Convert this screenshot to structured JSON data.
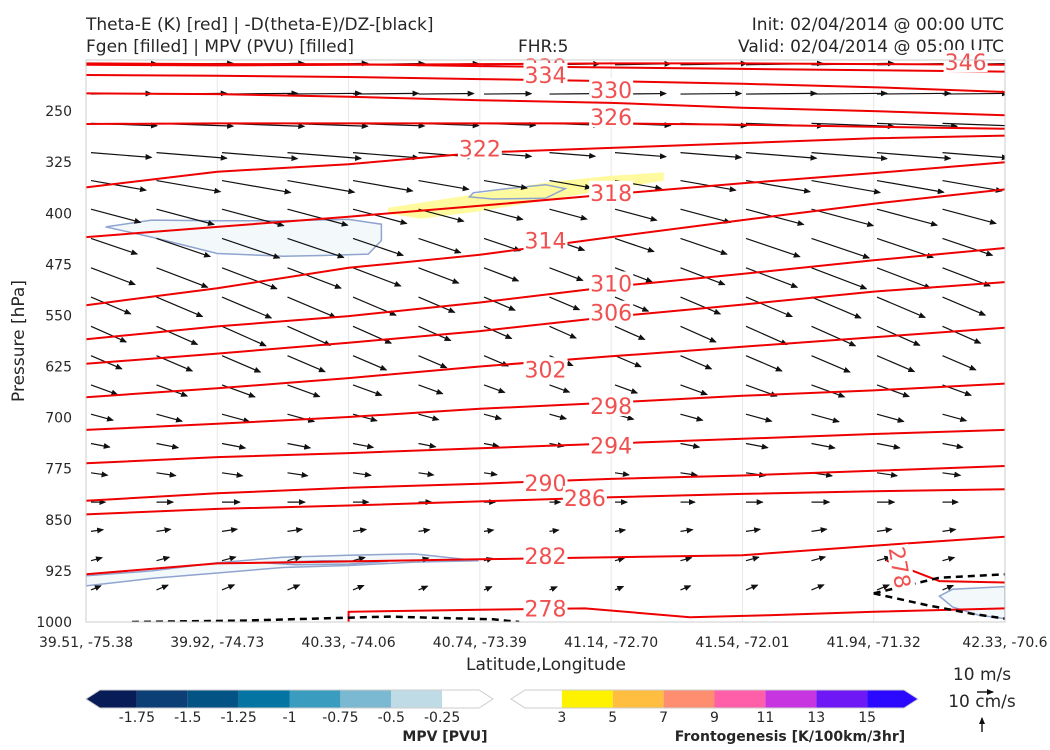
{
  "header": {
    "title_line1": "Theta-E (K) [red] | -D(theta-E)/DZ-[black]",
    "title_line2": "Fgen [filled] | MPV (PVU) [filled]",
    "fhr": "FHR:5",
    "init": "Init: 02/04/2014 @ 00:00 UTC",
    "valid": "Valid: 02/04/2014 @ 05:00 UTC"
  },
  "chart_data": {
    "type": "cross-section contour",
    "xlabel": "Latitude,Longitude",
    "ylabel": "Pressure [hPa]",
    "x_ticks": [
      "39.51, -75.38",
      "39.92, -74.73",
      "40.33, -74.06",
      "40.74, -73.39",
      "41.14, -72.70",
      "41.54, -72.01",
      "41.94, -71.32",
      "42.33, -70.6"
    ],
    "y_ticks": [
      250,
      325,
      400,
      475,
      550,
      625,
      700,
      775,
      850,
      925,
      1000
    ],
    "ylim": [
      1000,
      175
    ],
    "grid": true,
    "theta_e_contours": [
      {
        "label": "346",
        "points": [
          [
            0,
            182
          ],
          [
            1,
            183
          ],
          [
            2,
            182
          ],
          [
            3,
            181
          ],
          [
            4,
            180
          ],
          [
            5,
            180
          ],
          [
            6,
            181
          ],
          [
            7,
            182
          ]
        ],
        "label_at": [
          6.7,
          178
        ]
      },
      {
        "label": "338",
        "points": [
          [
            0,
            180
          ],
          [
            1,
            181
          ],
          [
            2,
            181
          ],
          [
            3,
            184
          ],
          [
            4,
            186
          ],
          [
            5,
            188
          ],
          [
            6,
            190
          ],
          [
            7,
            192
          ]
        ],
        "label_at": [
          3.5,
          185
        ]
      },
      {
        "label": "334",
        "points": [
          [
            0,
            197
          ],
          [
            1,
            198
          ],
          [
            2,
            200
          ],
          [
            3,
            203
          ],
          [
            4,
            206
          ],
          [
            5,
            210
          ],
          [
            6,
            215
          ],
          [
            7,
            222
          ]
        ],
        "label_at": [
          3.5,
          197
        ]
      },
      {
        "label": "330",
        "points": [
          [
            0,
            224
          ],
          [
            1,
            225
          ],
          [
            2,
            229
          ],
          [
            3,
            234
          ],
          [
            4,
            238
          ],
          [
            5,
            245
          ],
          [
            6,
            250
          ],
          [
            7,
            256
          ]
        ],
        "label_at": [
          4.0,
          219
        ]
      },
      {
        "label": "326",
        "points": [
          [
            0,
            269
          ],
          [
            1,
            268
          ],
          [
            2,
            268
          ],
          [
            3,
            268
          ],
          [
            4,
            268
          ],
          [
            5,
            270
          ],
          [
            6,
            273
          ],
          [
            7,
            276
          ]
        ],
        "label_at": [
          4.0,
          259
        ]
      },
      {
        "label": "322",
        "points": [
          [
            0,
            362
          ],
          [
            1,
            339
          ],
          [
            2,
            328
          ],
          [
            3,
            311
          ],
          [
            4,
            304
          ],
          [
            5,
            297
          ],
          [
            6,
            290
          ],
          [
            7,
            286
          ]
        ],
        "label_at": [
          3.0,
          305
        ]
      },
      {
        "label": "318",
        "points": [
          [
            0,
            435
          ],
          [
            1,
            420
          ],
          [
            2,
            405
          ],
          [
            3,
            389
          ],
          [
            4,
            372
          ],
          [
            5,
            356
          ],
          [
            6,
            341
          ],
          [
            7,
            325
          ]
        ],
        "label_at": [
          4.0,
          370
        ]
      },
      {
        "label": "314",
        "points": [
          [
            0,
            535
          ],
          [
            1,
            510
          ],
          [
            2,
            480
          ],
          [
            3,
            461
          ],
          [
            4,
            435
          ],
          [
            5,
            410
          ],
          [
            6,
            386
          ],
          [
            7,
            365
          ]
        ],
        "label_at": [
          3.5,
          440
        ]
      },
      {
        "label": "310",
        "points": [
          [
            0,
            585
          ],
          [
            1,
            566
          ],
          [
            2,
            551
          ],
          [
            3,
            531
          ],
          [
            4,
            508
          ],
          [
            5,
            489
          ],
          [
            6,
            469
          ],
          [
            7,
            451
          ]
        ],
        "label_at": [
          4.0,
          503
        ]
      },
      {
        "label": "306",
        "points": [
          [
            0,
            621
          ],
          [
            1,
            606
          ],
          [
            2,
            590
          ],
          [
            3,
            573
          ],
          [
            4,
            552
          ],
          [
            5,
            534
          ],
          [
            6,
            515
          ],
          [
            7,
            501
          ]
        ],
        "label_at": [
          4.0,
          546
        ]
      },
      {
        "label": "302",
        "points": [
          [
            0,
            670
          ],
          [
            1,
            657
          ],
          [
            2,
            642
          ],
          [
            3,
            625
          ],
          [
            4,
            610
          ],
          [
            5,
            596
          ],
          [
            6,
            582
          ],
          [
            7,
            568
          ]
        ],
        "label_at": [
          3.5,
          629
        ]
      },
      {
        "label": "298",
        "points": [
          [
            0,
            718
          ],
          [
            1,
            709
          ],
          [
            2,
            699
          ],
          [
            3,
            687
          ],
          [
            4,
            678
          ],
          [
            5,
            668
          ],
          [
            6,
            660
          ],
          [
            7,
            650
          ]
        ],
        "label_at": [
          4.0,
          683
        ]
      },
      {
        "label": "294",
        "points": [
          [
            0,
            767
          ],
          [
            1,
            758
          ],
          [
            2,
            752
          ],
          [
            3,
            745
          ],
          [
            4,
            738
          ],
          [
            5,
            731
          ],
          [
            6,
            724
          ],
          [
            7,
            718
          ]
        ],
        "label_at": [
          4.0,
          741
        ]
      },
      {
        "label": "290",
        "points": [
          [
            0,
            822
          ],
          [
            1,
            811
          ],
          [
            2,
            803
          ],
          [
            3,
            797
          ],
          [
            4,
            790
          ],
          [
            5,
            785
          ],
          [
            6,
            778
          ],
          [
            7,
            771
          ]
        ],
        "label_at": [
          3.5,
          796
        ]
      },
      {
        "label": "286",
        "points": [
          [
            0,
            842
          ],
          [
            1,
            834
          ],
          [
            2,
            829
          ],
          [
            3,
            823
          ],
          [
            4,
            817
          ],
          [
            5,
            812
          ],
          [
            6,
            808
          ],
          [
            7,
            805
          ]
        ],
        "label_at": [
          3.8,
          818
        ]
      },
      {
        "label": "282",
        "points": [
          [
            0,
            930
          ],
          [
            1,
            914
          ],
          [
            2,
            911
          ],
          [
            3,
            908
          ],
          [
            4,
            905
          ],
          [
            5,
            902
          ],
          [
            6,
            888
          ],
          [
            7,
            875
          ]
        ],
        "label_at": [
          3.5,
          903
        ]
      },
      {
        "label": "278",
        "points": [
          [
            2.0,
            1000
          ],
          [
            2.0,
            985
          ],
          [
            3,
            982
          ],
          [
            3.8,
            980
          ],
          [
            4.6,
            993
          ],
          [
            5.2,
            990
          ],
          [
            6,
            985
          ],
          [
            7,
            980
          ]
        ],
        "label_at": [
          3.5,
          980
        ]
      },
      {
        "label": "278",
        "points": [
          [
            6.1,
            910
          ],
          [
            6.3,
            925
          ],
          [
            6.5,
            940
          ],
          [
            7,
            942
          ]
        ],
        "label_at": [
          6.2,
          920
        ],
        "rotate": 80
      }
    ],
    "dthetae_dz_dashed": [
      {
        "points": [
          [
            0.35,
            1000
          ],
          [
            1.2,
            998
          ],
          [
            2.3,
            992
          ],
          [
            3.1,
            996
          ],
          [
            3.3,
            1000
          ]
        ]
      },
      {
        "points": [
          [
            6.0,
            958
          ],
          [
            6.5,
            935
          ],
          [
            7,
            930
          ]
        ]
      },
      {
        "points": [
          [
            6.0,
            958
          ],
          [
            6.4,
            975
          ],
          [
            6.75,
            988
          ],
          [
            7,
            995
          ]
        ]
      }
    ],
    "mpv_filled": [
      {
        "value": -0.25,
        "color": "#f3f8fa",
        "points": [
          [
            0.15,
            420
          ],
          [
            0.5,
            410
          ],
          [
            1,
            411
          ],
          [
            1.5,
            411
          ],
          [
            2.0,
            409
          ],
          [
            2.25,
            416
          ],
          [
            2.25,
            440
          ],
          [
            2.15,
            460
          ],
          [
            1.8,
            462
          ],
          [
            1.5,
            463
          ],
          [
            1.0,
            459
          ],
          [
            0.5,
            435
          ]
        ]
      },
      {
        "value": -0.25,
        "color": "#f3f8fa",
        "points": [
          [
            0,
            932
          ],
          [
            0.5,
            925
          ],
          [
            1,
            913
          ],
          [
            1.5,
            905
          ],
          [
            2,
            902
          ],
          [
            2.5,
            900
          ],
          [
            2.99,
            910
          ],
          [
            2.5,
            912
          ],
          [
            2,
            917
          ],
          [
            1.5,
            920
          ],
          [
            1,
            928
          ],
          [
            0.5,
            936
          ],
          [
            0,
            947
          ]
        ]
      },
      {
        "value": -0.5,
        "color": "#dcedf1",
        "points": [
          [
            1.35,
            913
          ],
          [
            1.8,
            910
          ],
          [
            2.3,
            911
          ],
          [
            2.0,
            915
          ],
          [
            1.6,
            916
          ]
        ]
      },
      {
        "value": -0.25,
        "color": "#f3f8fa",
        "points": [
          [
            6.6,
            952
          ],
          [
            7,
            948
          ],
          [
            7,
            995
          ],
          [
            6.8,
            990
          ],
          [
            6.6,
            978
          ],
          [
            6.5,
            962
          ]
        ]
      }
    ],
    "fgen_filled": [
      {
        "value": 3,
        "color": "#fffa9e",
        "points": [
          [
            2.3,
            392
          ],
          [
            2.9,
            374
          ],
          [
            3.5,
            355
          ],
          [
            4,
            345
          ],
          [
            4.4,
            340
          ],
          [
            4.4,
            352
          ],
          [
            4,
            365
          ],
          [
            3.5,
            381
          ],
          [
            3,
            397
          ],
          [
            2.55,
            408
          ],
          [
            2.3,
            400
          ]
        ]
      },
      {
        "value": -0.25,
        "color": "#f3f8fa",
        "outline_only": true,
        "points": [
          [
            2.95,
            370
          ],
          [
            3.2,
            364
          ],
          [
            3.5,
            358
          ],
          [
            3.65,
            364
          ],
          [
            3.5,
            378
          ],
          [
            3.1,
            379
          ],
          [
            2.92,
            376
          ]
        ]
      }
    ],
    "colorbar_mpv": {
      "title": "MPV [PVU]",
      "ticks": [
        -1.75,
        -1.5,
        -1.25,
        -1.0,
        -0.75,
        -0.5,
        -0.25
      ],
      "colors": [
        "#081d58",
        "#0c3f75",
        "#035385",
        "#0475a3",
        "#3a9cbf",
        "#7bb8d1",
        "#bfdbe6",
        "#ffffff"
      ]
    },
    "colorbar_fgen": {
      "title": "Frontogenesis [K/100km/3hr]",
      "ticks": [
        3,
        5,
        7,
        9,
        11,
        13,
        15
      ],
      "colors": [
        "#ffffff",
        "#fff200",
        "#ffbe3f",
        "#ff8e70",
        "#ff5ea8",
        "#c635e0",
        "#6e19f5",
        "#2b08ff"
      ]
    },
    "reference_vectors": {
      "horizontal": "10 m/s",
      "vertical": "10 cm/s"
    }
  }
}
